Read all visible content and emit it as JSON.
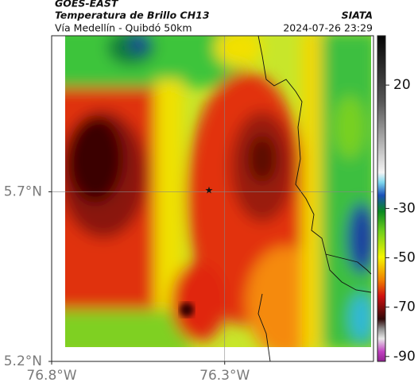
{
  "header": {
    "source": "GOES-EAST",
    "product": "Temperatura de Brillo CH13",
    "location": "Vía Medellín - Quibdó 50km",
    "organization": "SIATA",
    "datetime": "2024-07-26 23:29"
  },
  "map": {
    "lonlim": [
      -76.8,
      -75.87
    ],
    "latlim": [
      5.2,
      6.16
    ],
    "lonticks": [
      {
        "value": -76.8,
        "label": "76.8°W"
      },
      {
        "value": -76.3,
        "label": "76.3°W"
      }
    ],
    "latticks": [
      {
        "value": 5.7,
        "label": "5.7°N"
      },
      {
        "value": 5.2,
        "label": "5.2°N"
      }
    ]
  },
  "colorbar": {
    "lim": [
      -92,
      40
    ],
    "ticks": [
      20,
      -30,
      -50,
      -70,
      -90
    ]
  }
}
